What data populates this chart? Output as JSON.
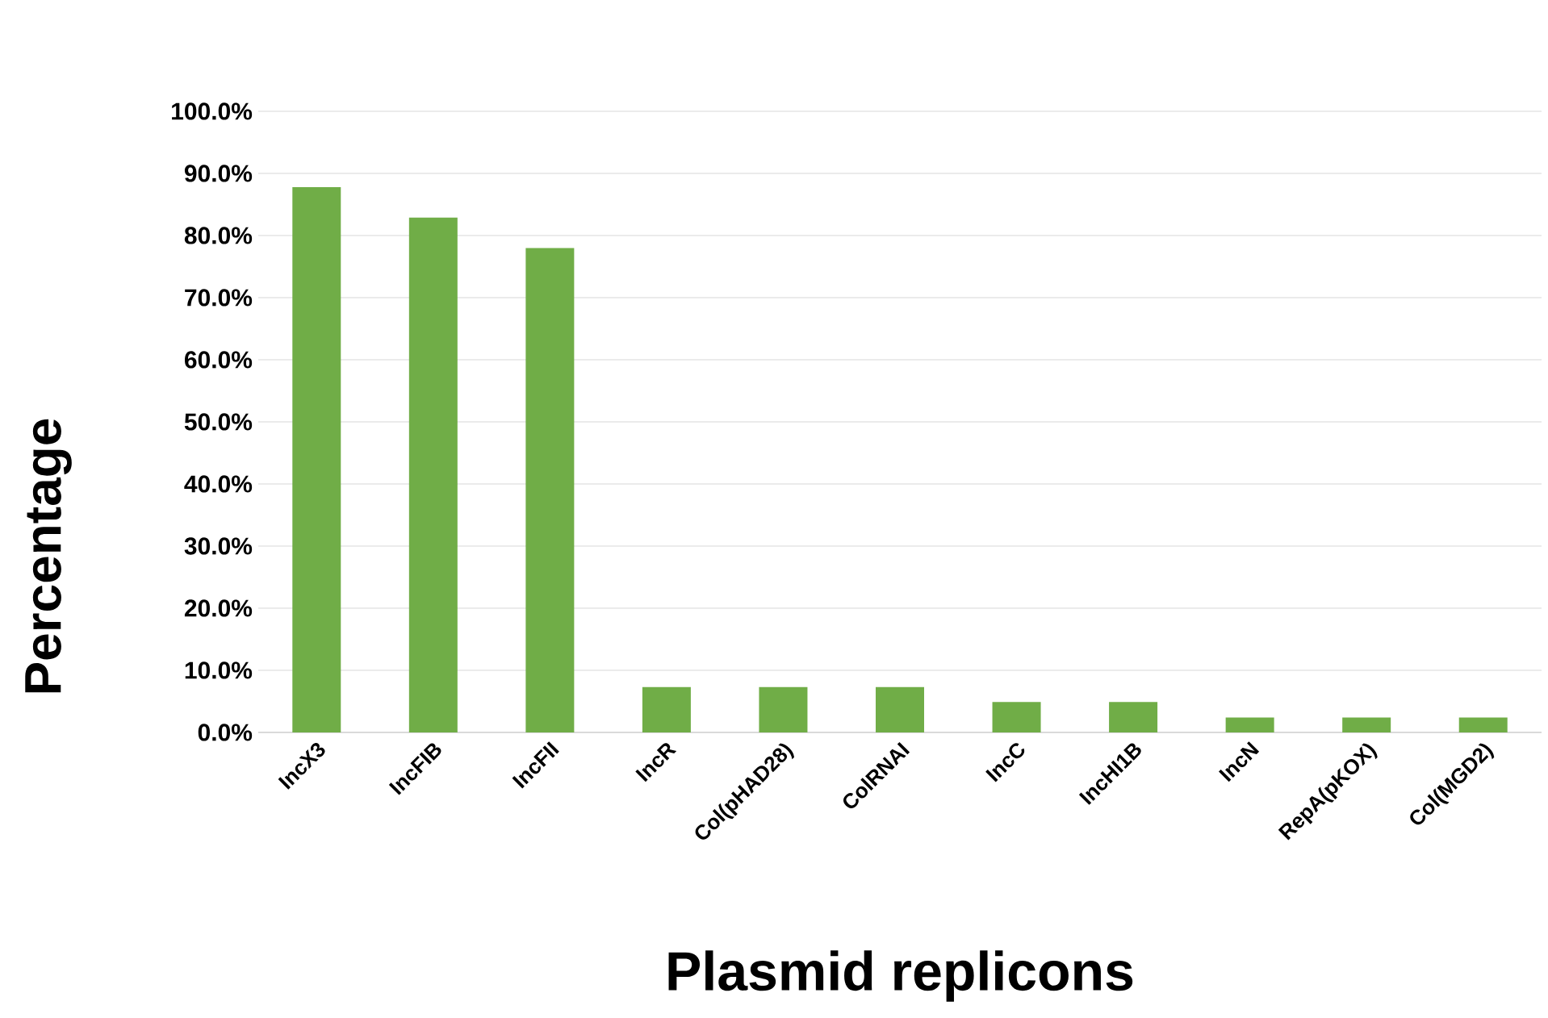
{
  "chart_data": {
    "type": "bar",
    "xlabel": "Plasmid replicons",
    "ylabel": "Percentage",
    "categories": [
      "IncX3",
      "IncFIB",
      "IncFII",
      "IncR",
      "Col(pHAD28)",
      "ColRNAI",
      "IncC",
      "IncHI1B",
      "IncN",
      "RepA(pKOX)",
      "Col(MGD2)"
    ],
    "values": [
      87.8,
      82.9,
      78.0,
      7.3,
      7.3,
      7.3,
      4.9,
      4.9,
      2.4,
      2.4,
      2.4
    ],
    "color": "#70ad47",
    "ylim": [
      0,
      100
    ],
    "yticks": [
      {
        "value": 0,
        "label": "0.0%"
      },
      {
        "value": 10,
        "label": "10.0%"
      },
      {
        "value": 20,
        "label": "20.0%"
      },
      {
        "value": 30,
        "label": "30.0%"
      },
      {
        "value": 40,
        "label": "40.0%"
      },
      {
        "value": 50,
        "label": "50.0%"
      },
      {
        "value": 60,
        "label": "60.0%"
      },
      {
        "value": 70,
        "label": "70.0%"
      },
      {
        "value": 80,
        "label": "80.0%"
      },
      {
        "value": 90,
        "label": "90.0%"
      },
      {
        "value": 100,
        "label": "100.0%"
      }
    ],
    "grid": "y"
  }
}
